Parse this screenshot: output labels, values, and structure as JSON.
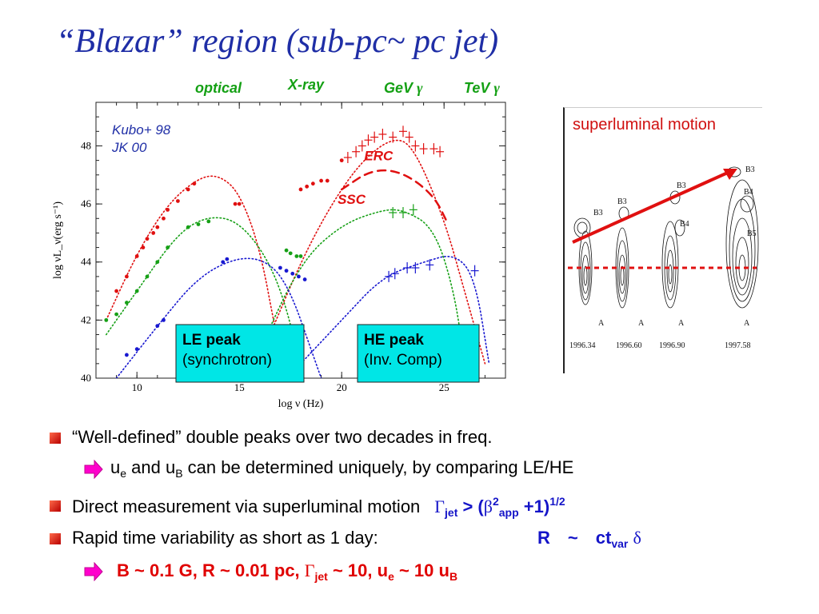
{
  "slide": {
    "title": "“Blazar” region (sub-pc~ pc jet)",
    "band_labels": {
      "optical": "optical",
      "xray": "X-ray",
      "gev": "GeV",
      "tev": "TeV",
      "gamma": "γ"
    },
    "vlbi": {
      "title": "superluminal motion",
      "epochs": [
        "1996.34",
        "1996.60",
        "1996.90",
        "1997.58"
      ],
      "knot_labels": [
        "B3",
        "B3",
        "B3",
        "B3",
        "B4",
        "B4",
        "B5",
        "A",
        "A",
        "A",
        "A"
      ],
      "colors": {
        "arrow": "#e01010",
        "dotted_line": "#e01010"
      }
    },
    "bullets": {
      "b1": "“Well-defined” double peaks over two decades in freq.",
      "b1a_u": "u",
      "b1a_e": "e",
      "b1a_and": " and u",
      "b1a_B": "B",
      "b1a_rest": " can be determined uniquely, by comparing LE/HE",
      "b2": "Direct measurement via superluminal motion",
      "b2_G": "Γ",
      "b2_jet": "jet",
      "b2_gt": " >  (",
      "b2_beta": "β",
      "b2_sq": "2",
      "b2_app": "app",
      "b2_plus": " +1)",
      "b2_half": "1/2",
      "b3": "Rapid time variability as short as 1 day:",
      "b3_R": "R",
      "b3_sim": "~",
      "b3_ct": "ct",
      "b3_var": "var",
      "b3_delta": "δ",
      "b4_a": "B ~ 0.1 G,  R ~ 0.01 pc,  ",
      "b4_G": "Γ",
      "b4_jet": "jet",
      "b4_b": " ~ 10,  u",
      "b4_e": "e",
      "b4_c": " ~ 10 u",
      "b4_B": "B"
    }
  },
  "chart_data": {
    "type": "scatter",
    "xlabel": "log ν (Hz)",
    "ylabel": "log νL_ν(erg s⁻¹)",
    "xlim": [
      8,
      28
    ],
    "ylim": [
      40,
      49.5
    ],
    "xticks": [
      10,
      15,
      20,
      25
    ],
    "yticks": [
      40,
      42,
      44,
      46,
      48
    ],
    "references": [
      "Kubo+ 98",
      "JK 00"
    ],
    "series": [
      {
        "color": "#e01010",
        "points": [
          [
            9.0,
            43.0
          ],
          [
            9.5,
            43.5
          ],
          [
            10.0,
            44.2
          ],
          [
            10.3,
            44.5
          ],
          [
            10.5,
            44.8
          ],
          [
            10.8,
            45.0
          ],
          [
            11.0,
            45.2
          ],
          [
            11.3,
            45.5
          ],
          [
            11.5,
            45.8
          ],
          [
            12.0,
            46.1
          ],
          [
            12.5,
            46.5
          ],
          [
            12.8,
            46.7
          ],
          [
            14.8,
            46.0
          ],
          [
            15.0,
            46.0
          ],
          [
            18.0,
            46.5
          ],
          [
            18.3,
            46.6
          ],
          [
            18.6,
            46.7
          ],
          [
            19.0,
            46.8
          ],
          [
            19.3,
            46.8
          ],
          [
            20.0,
            47.5
          ],
          [
            20.3,
            47.6
          ],
          [
            20.7,
            47.8
          ],
          [
            21.0,
            48.0
          ],
          [
            21.3,
            48.2
          ],
          [
            21.6,
            48.3
          ],
          [
            22.0,
            48.4
          ],
          [
            22.5,
            48.3
          ],
          [
            23.0,
            48.5
          ],
          [
            23.3,
            48.3
          ],
          [
            23.6,
            48.0
          ],
          [
            24.0,
            47.9
          ],
          [
            24.5,
            47.9
          ],
          [
            24.8,
            47.8
          ]
        ]
      },
      {
        "color": "#16a016",
        "points": [
          [
            8.5,
            42.0
          ],
          [
            9.0,
            42.2
          ],
          [
            9.5,
            42.6
          ],
          [
            10.0,
            43.0
          ],
          [
            10.5,
            43.5
          ],
          [
            11.0,
            44.0
          ],
          [
            11.5,
            44.5
          ],
          [
            12.5,
            45.2
          ],
          [
            13.0,
            45.3
          ],
          [
            13.5,
            45.4
          ],
          [
            17.3,
            44.4
          ],
          [
            17.5,
            44.3
          ],
          [
            17.8,
            44.2
          ],
          [
            18.0,
            44.2
          ],
          [
            22.5,
            45.7
          ],
          [
            23.0,
            45.7
          ],
          [
            23.5,
            45.8
          ]
        ]
      },
      {
        "color": "#1818d0",
        "points": [
          [
            9.5,
            40.8
          ],
          [
            10.0,
            41.0
          ],
          [
            11.0,
            41.8
          ],
          [
            11.3,
            42.0
          ],
          [
            14.2,
            44.0
          ],
          [
            14.4,
            44.1
          ],
          [
            17.0,
            43.8
          ],
          [
            17.3,
            43.7
          ],
          [
            17.6,
            43.6
          ],
          [
            17.9,
            43.5
          ],
          [
            18.2,
            43.4
          ],
          [
            22.3,
            43.5
          ],
          [
            22.6,
            43.6
          ],
          [
            23.2,
            43.8
          ],
          [
            23.6,
            43.8
          ],
          [
            24.3,
            43.9
          ],
          [
            26.5,
            43.7
          ]
        ]
      }
    ],
    "curves": [
      {
        "name": "ERC",
        "color": "#e01010",
        "style": "dotted",
        "points": [
          [
            16.5,
            41.5
          ],
          [
            18.0,
            44.0
          ],
          [
            19.5,
            46.0
          ],
          [
            21.0,
            47.5
          ],
          [
            22.5,
            48.3
          ],
          [
            23.5,
            48.0
          ],
          [
            25.0,
            45.5
          ],
          [
            26.0,
            43.0
          ],
          [
            27.0,
            40.5
          ]
        ]
      },
      {
        "name": "SSC",
        "color": "#e01010",
        "style": "dashed",
        "points": [
          [
            20.0,
            46.5
          ],
          [
            21.5,
            47.2
          ],
          [
            23.0,
            47.1
          ],
          [
            24.5,
            46.3
          ],
          [
            25.2,
            45.3
          ]
        ]
      },
      {
        "color": "#e01010",
        "style": "dotted",
        "points": [
          [
            8.5,
            42.0
          ],
          [
            10.0,
            44.3
          ],
          [
            11.5,
            46.0
          ],
          [
            13.0,
            46.9
          ],
          [
            14.0,
            47.0
          ],
          [
            15.0,
            46.4
          ],
          [
            16.0,
            44.5
          ],
          [
            16.8,
            41.5
          ],
          [
            17.3,
            40.0
          ]
        ]
      },
      {
        "color": "#16a016",
        "style": "dotted",
        "points": [
          [
            8.5,
            41.5
          ],
          [
            10.0,
            43.0
          ],
          [
            12.0,
            45.0
          ],
          [
            13.5,
            45.6
          ],
          [
            15.0,
            45.4
          ],
          [
            16.5,
            44.0
          ],
          [
            17.5,
            42.0
          ],
          [
            18.0,
            40.0
          ]
        ]
      },
      {
        "color": "#16a016",
        "style": "dotted",
        "points": [
          [
            16.0,
            41.0
          ],
          [
            18.0,
            44.0
          ],
          [
            20.0,
            45.3
          ],
          [
            22.0,
            45.8
          ],
          [
            23.0,
            45.8
          ],
          [
            24.5,
            45.2
          ],
          [
            25.5,
            43.0
          ],
          [
            26.0,
            40.5
          ]
        ]
      },
      {
        "color": "#1818d0",
        "style": "dotted",
        "points": [
          [
            9.0,
            40.0
          ],
          [
            11.0,
            41.8
          ],
          [
            13.0,
            43.5
          ],
          [
            15.0,
            44.2
          ],
          [
            16.5,
            44.0
          ],
          [
            17.5,
            43.0
          ],
          [
            18.5,
            41.0
          ],
          [
            19.0,
            40.0
          ]
        ]
      },
      {
        "color": "#1818d0",
        "style": "dotted",
        "points": [
          [
            18.0,
            40.5
          ],
          [
            20.0,
            42.0
          ],
          [
            22.0,
            43.5
          ],
          [
            24.0,
            44.0
          ],
          [
            25.5,
            44.3
          ],
          [
            26.5,
            43.5
          ],
          [
            27.2,
            40.5
          ]
        ]
      }
    ],
    "annotations": [
      {
        "text": "ERC",
        "color": "#e01010"
      },
      {
        "text": "SSC",
        "color": "#e01010"
      },
      {
        "title": "LE peak",
        "text": "(synchrotron)",
        "color": "#00e6e6"
      },
      {
        "title": "HE peak",
        "text": "(Inv. Comp)",
        "color": "#00e6e6"
      }
    ]
  }
}
